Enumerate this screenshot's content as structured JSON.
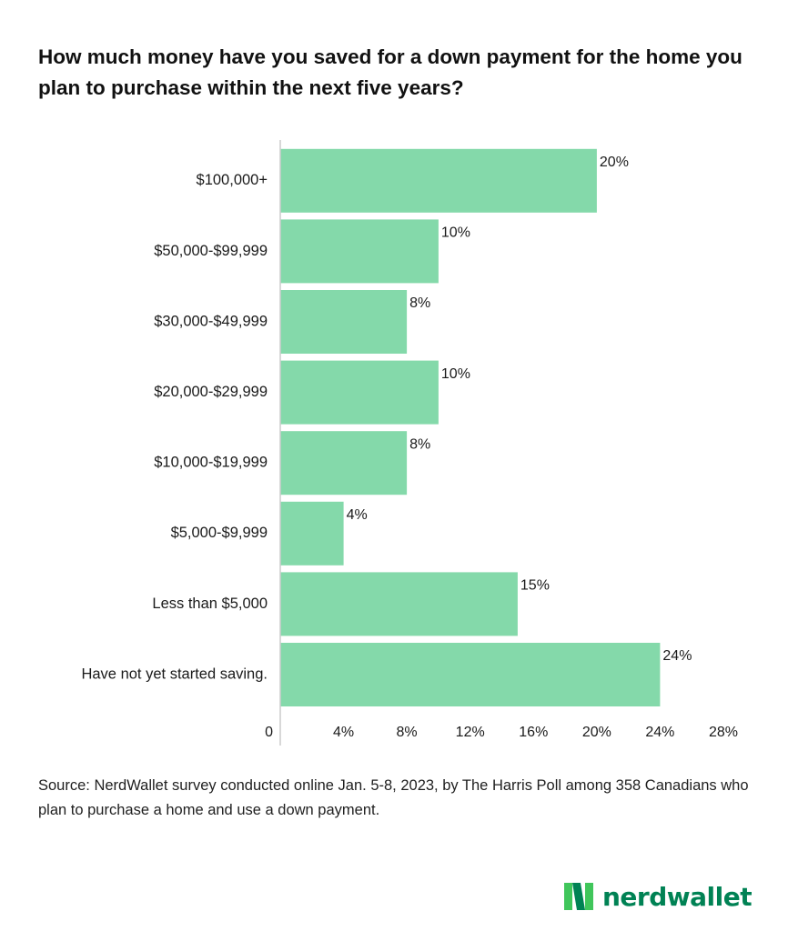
{
  "chart_data": {
    "type": "bar",
    "orientation": "horizontal",
    "title": "How much money have you saved for a down payment for the home you plan to purchase within the next five years?",
    "categories": [
      "$100,000+",
      "$50,000-$99,999",
      "$30,000-$49,999",
      "$20,000-$29,999",
      "$10,000-$19,999",
      "$5,000-$9,999",
      "Less than $5,000",
      "Have not yet started saving."
    ],
    "values": [
      20,
      10,
      8,
      10,
      8,
      4,
      15,
      24
    ],
    "value_labels": [
      "20%",
      "10%",
      "8%",
      "10%",
      "8%",
      "4%",
      "15%",
      "24%"
    ],
    "xlim": [
      0,
      28
    ],
    "xticks": [
      0,
      4,
      8,
      12,
      16,
      20,
      24,
      28
    ],
    "xtick_labels": [
      "0",
      "4%",
      "8%",
      "12%",
      "16%",
      "20%",
      "24%",
      "28%"
    ],
    "xlabel": "",
    "ylabel": "",
    "grid": false,
    "legend": "none",
    "bar_color": "#84d9aa",
    "axis_color": "#cccccc"
  },
  "source_note": "Source: NerdWallet survey conducted online Jan. 5-8, 2023, by The Harris Poll among 358 Canadians who plan to purchase a home and use a down payment.",
  "logo": {
    "wordmark": "nerdwallet",
    "icon": "nerdwallet-n-logo-icon",
    "brand_color": "#008254",
    "brand_color_light": "#40c65b"
  }
}
